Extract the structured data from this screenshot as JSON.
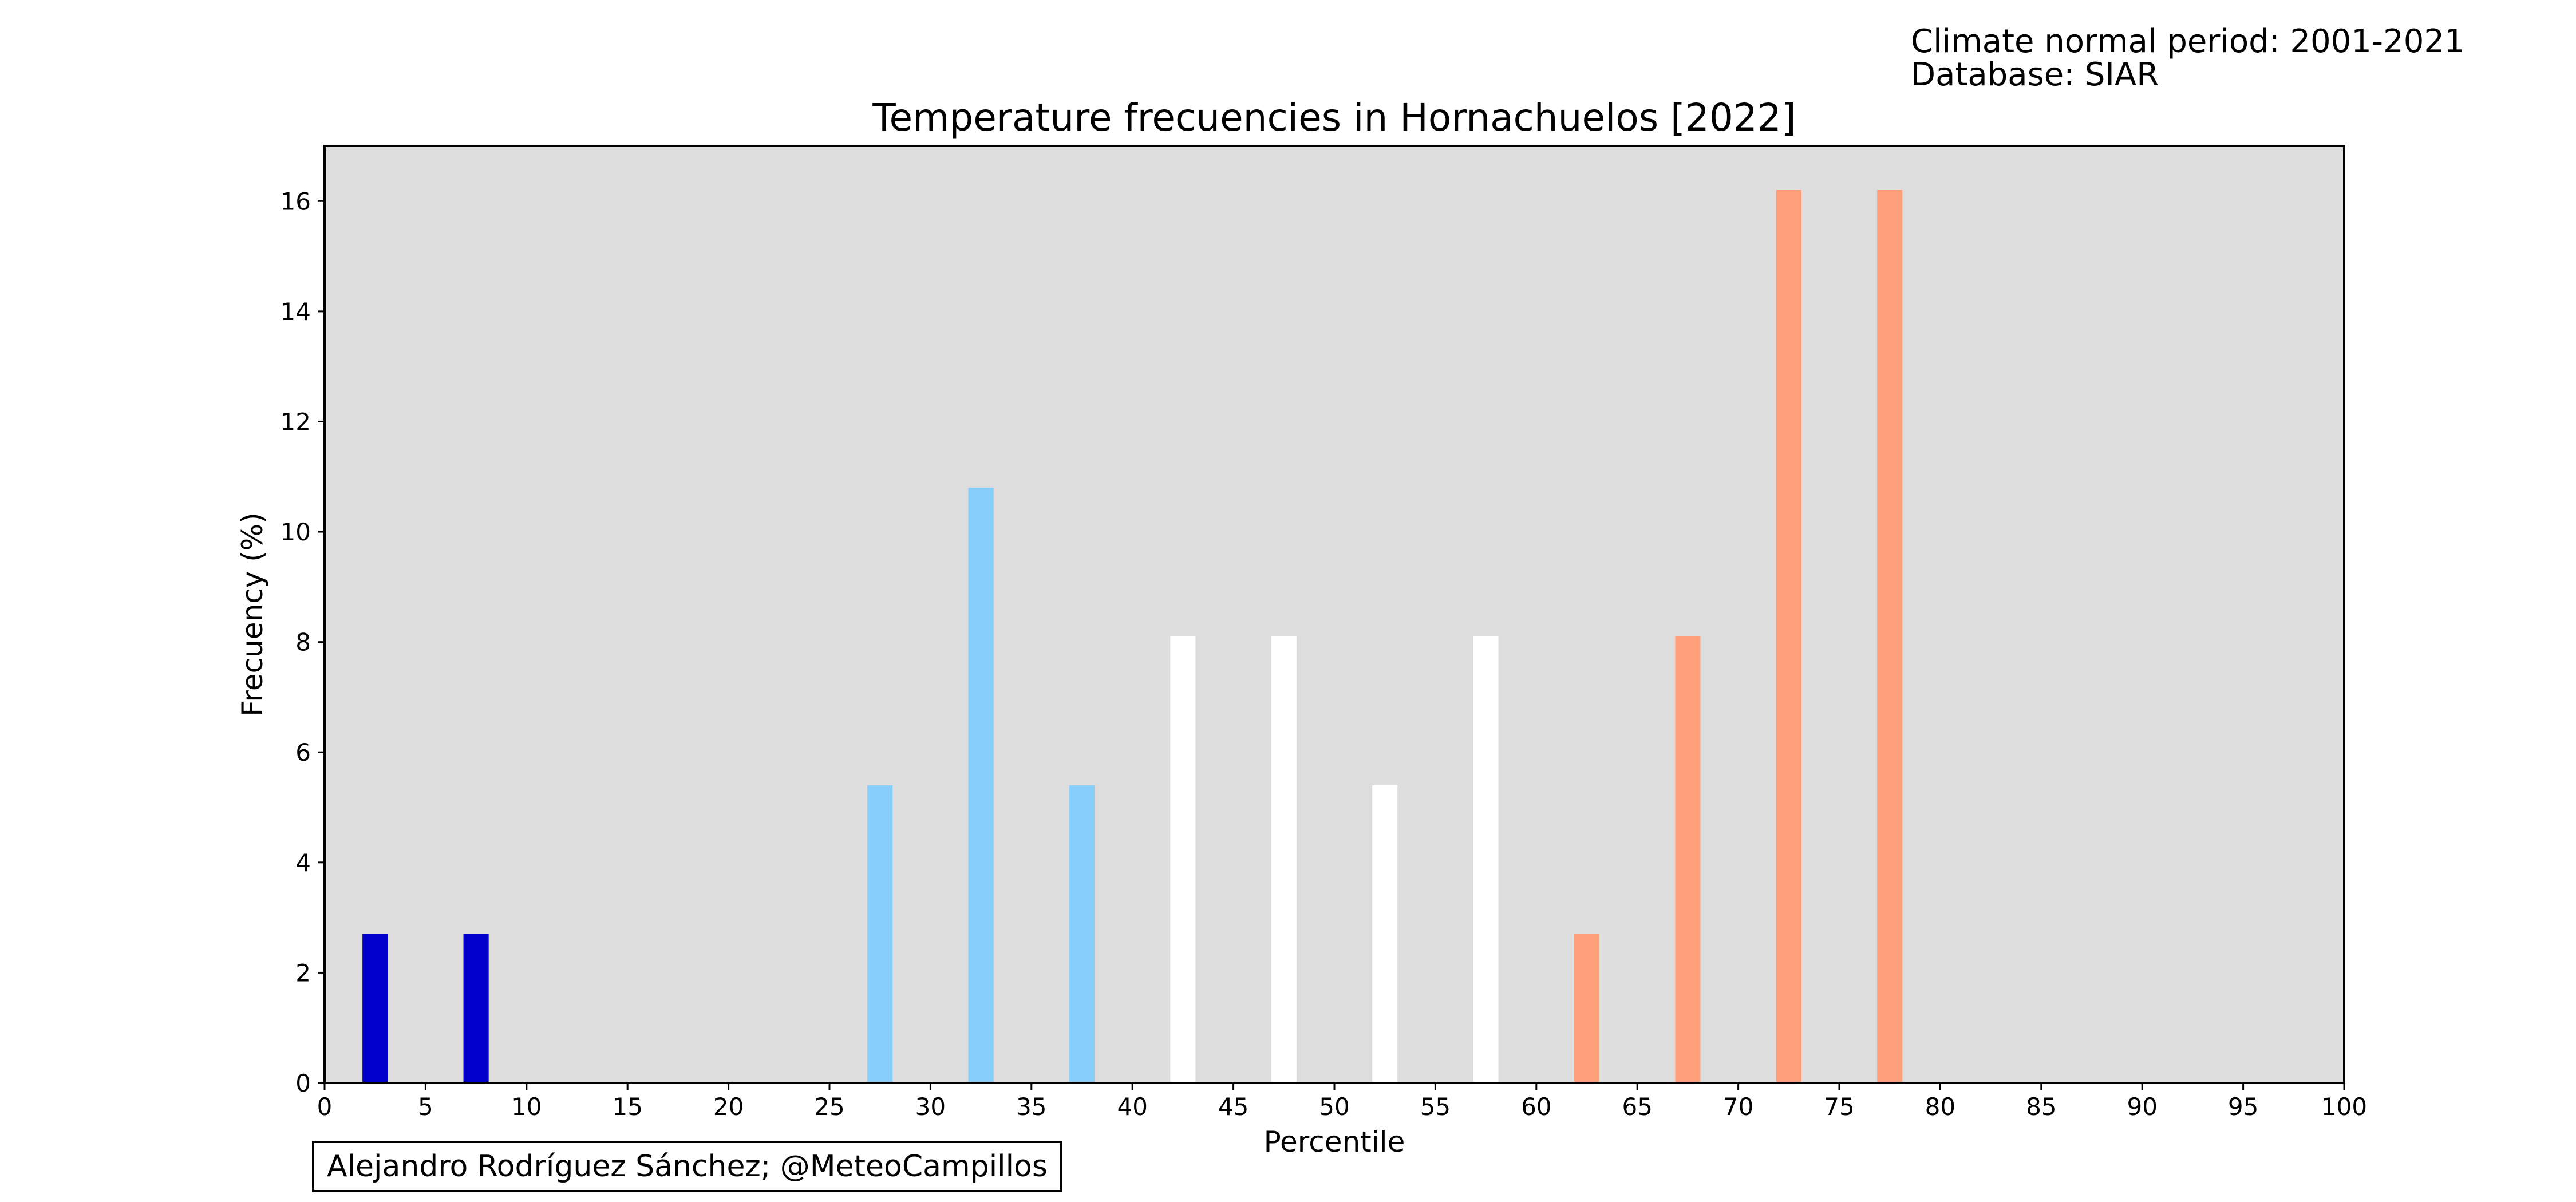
{
  "header": {
    "climate_period": "Climate normal period: 2001-2021",
    "database": "Database: SIAR"
  },
  "credit": "Alejandro Rodríguez Sánchez; @MeteoCampillos",
  "chart_data": {
    "type": "bar",
    "title": "Temperature frecuencies in Hornachuelos [2022]",
    "xlabel": "Percentile",
    "ylabel": "Frecuency (%)",
    "xlim": [
      0,
      100
    ],
    "ylim": [
      0,
      17
    ],
    "xticks": [
      0,
      5,
      10,
      15,
      20,
      25,
      30,
      35,
      40,
      45,
      50,
      55,
      60,
      65,
      70,
      75,
      80,
      85,
      90,
      95,
      100
    ],
    "yticks": [
      0,
      2,
      4,
      6,
      8,
      10,
      12,
      14,
      16
    ],
    "plot_background": "#dddddd",
    "grid": false,
    "bar_width": 1.25,
    "bars": [
      {
        "x": 2.5,
        "value": 2.7,
        "color": "#0000cc"
      },
      {
        "x": 7.5,
        "value": 2.7,
        "color": "#0000cc"
      },
      {
        "x": 27.5,
        "value": 5.4,
        "color": "#87cefa"
      },
      {
        "x": 32.5,
        "value": 10.8,
        "color": "#87cefa"
      },
      {
        "x": 37.5,
        "value": 5.4,
        "color": "#87cefa"
      },
      {
        "x": 42.5,
        "value": 8.1,
        "color": "#ffffff"
      },
      {
        "x": 47.5,
        "value": 8.1,
        "color": "#ffffff"
      },
      {
        "x": 52.5,
        "value": 5.4,
        "color": "#ffffff"
      },
      {
        "x": 57.5,
        "value": 8.1,
        "color": "#ffffff"
      },
      {
        "x": 62.5,
        "value": 2.7,
        "color": "#ffa07a"
      },
      {
        "x": 67.5,
        "value": 8.1,
        "color": "#ffa07a"
      },
      {
        "x": 72.5,
        "value": 16.2,
        "color": "#ffa07a"
      },
      {
        "x": 77.5,
        "value": 16.2,
        "color": "#ffa07a"
      }
    ]
  }
}
